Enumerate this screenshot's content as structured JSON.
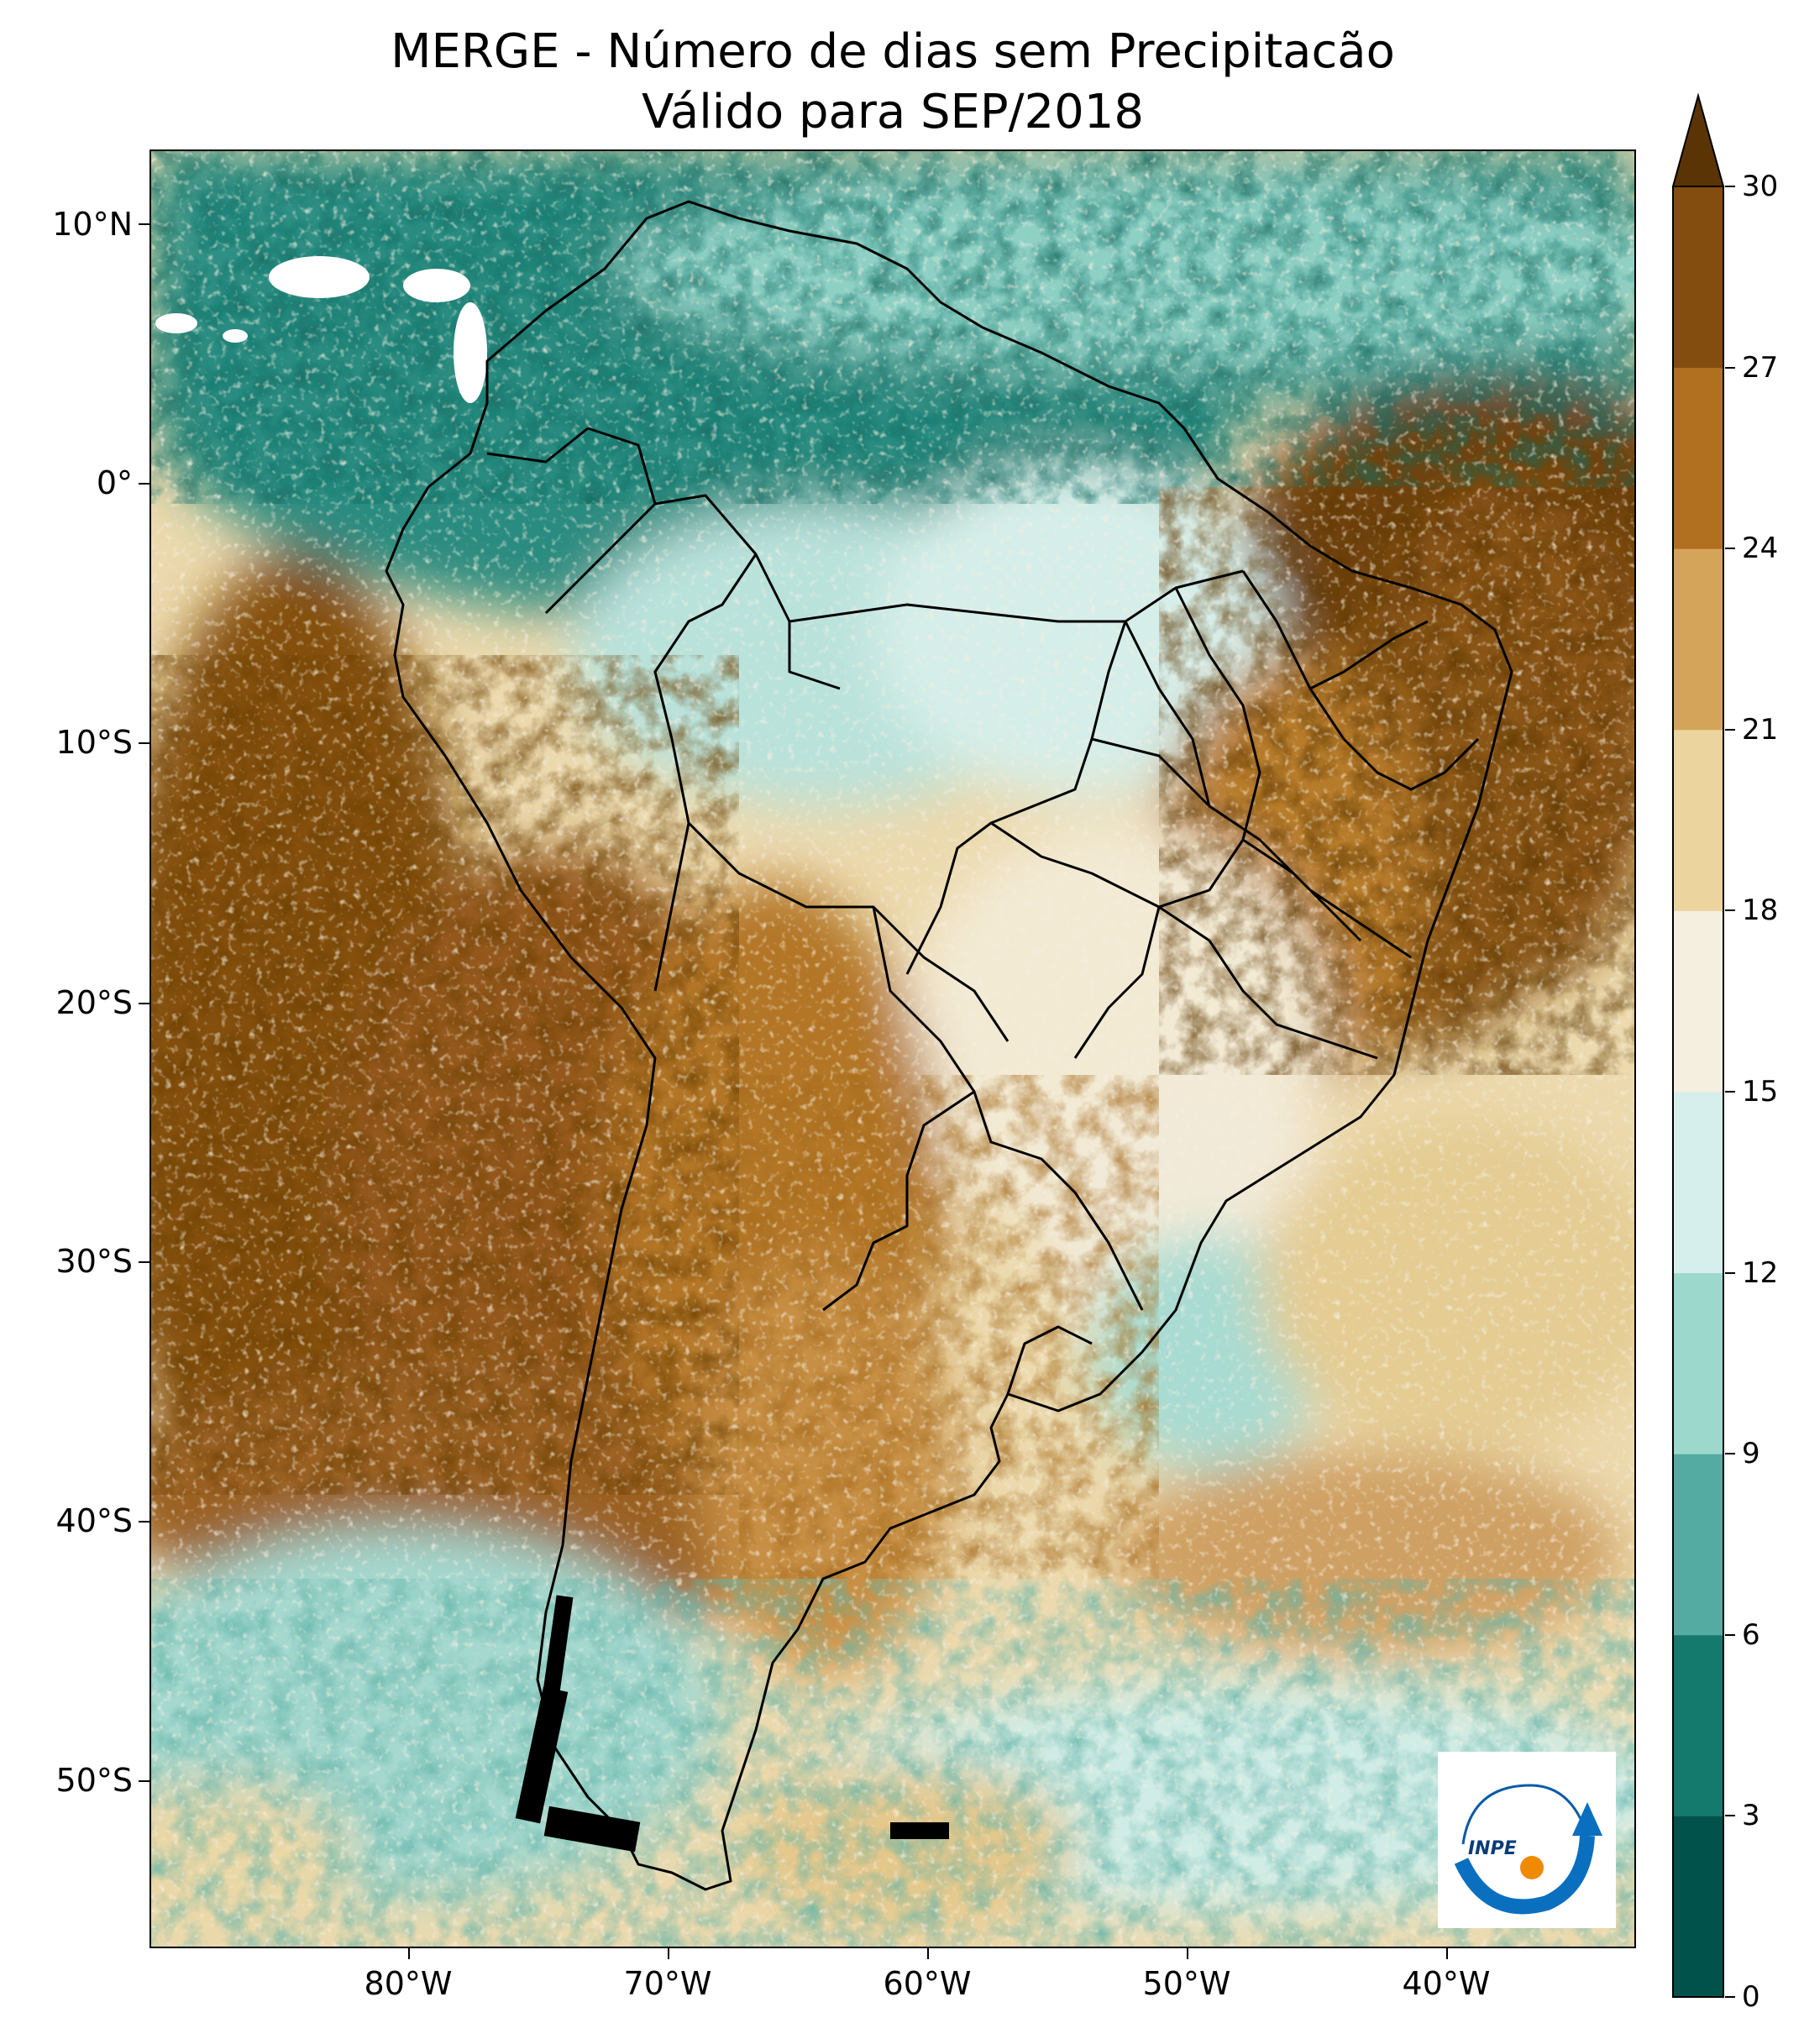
{
  "title": {
    "line1": "MERGE - Número de dias sem Precipitacão",
    "line2": "Válido para SEP/2018"
  },
  "map": {
    "region": "South America",
    "variable": "Number of days without precipitation",
    "lat_labels": [
      "10°N",
      "0°",
      "10°S",
      "20°S",
      "30°S",
      "40°S",
      "50°S"
    ],
    "lon_labels": [
      "80°W",
      "70°W",
      "60°W",
      "50°W",
      "40°W"
    ]
  },
  "colorbar": {
    "ticks": [
      "0",
      "3",
      "6",
      "9",
      "12",
      "15",
      "18",
      "21",
      "24",
      "27",
      "30"
    ],
    "colors": [
      "#01524a",
      "#147a6e",
      "#53aba1",
      "#9dd8cd",
      "#d7efec",
      "#f5efdf",
      "#ecd49f",
      "#d3a459",
      "#b0701f",
      "#834d0f",
      "#5b3406"
    ],
    "extend": "max"
  },
  "logo": {
    "text": "INPE"
  }
}
